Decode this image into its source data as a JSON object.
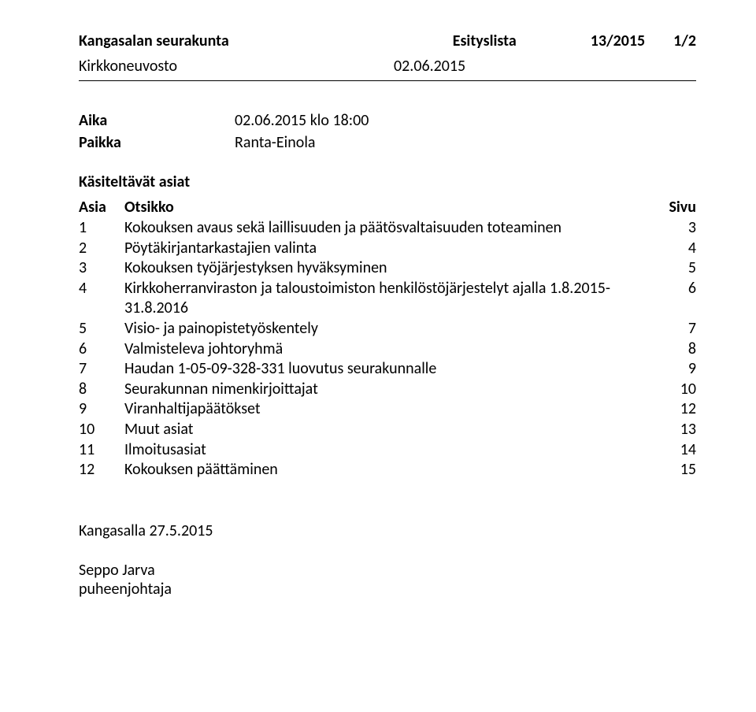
{
  "header": {
    "org": "Kangasalan seurakunta",
    "docType": "Esityslista",
    "docNumber": "13/2015",
    "pageIndicator": "1/2"
  },
  "subheader": {
    "body": "Kirkkoneuvosto",
    "date": "02.06.2015"
  },
  "meta": {
    "time_label": "Aika",
    "time_value": "02.06.2015 klo 18:00",
    "place_label": "Paikka",
    "place_value": "Ranta-Einola"
  },
  "agenda": {
    "section_title": "Käsiteltävät asiat",
    "col_num": "Asia",
    "col_title": "Otsikko",
    "col_page": "Sivu",
    "items": [
      {
        "n": "1",
        "title": "Kokouksen avaus sekä laillisuuden ja päätösvaltaisuuden toteaminen",
        "page": "3"
      },
      {
        "n": "2",
        "title": "Pöytäkirjantarkastajien valinta",
        "page": "4"
      },
      {
        "n": "3",
        "title": "Kokouksen työjärjestyksen hyväksyminen",
        "page": "5"
      },
      {
        "n": "4",
        "title": "Kirkkoherranviraston ja taloustoimiston henkilöstöjärjestelyt ajalla 1.8.2015-31.8.2016",
        "page": "6"
      },
      {
        "n": "5",
        "title": "Visio- ja painopistetyöskentely",
        "page": "7"
      },
      {
        "n": "6",
        "title": "Valmisteleva johtoryhmä",
        "page": "8"
      },
      {
        "n": "7",
        "title": "Haudan 1-05-09-328-331 luovutus seurakunnalle",
        "page": "9"
      },
      {
        "n": "8",
        "title": "Seurakunnan nimenkirjoittajat",
        "page": "10"
      },
      {
        "n": "9",
        "title": "Viranhaltijapäätökset",
        "page": "12"
      },
      {
        "n": "10",
        "title": "Muut asiat",
        "page": "13"
      },
      {
        "n": "11",
        "title": "Ilmoitusasiat",
        "page": "14"
      },
      {
        "n": "12",
        "title": "Kokouksen päättäminen",
        "page": "15"
      }
    ]
  },
  "footer": {
    "place_date": "Kangasalla 27.5.2015",
    "signer_name": "Seppo Jarva",
    "signer_role": "puheenjohtaja"
  }
}
